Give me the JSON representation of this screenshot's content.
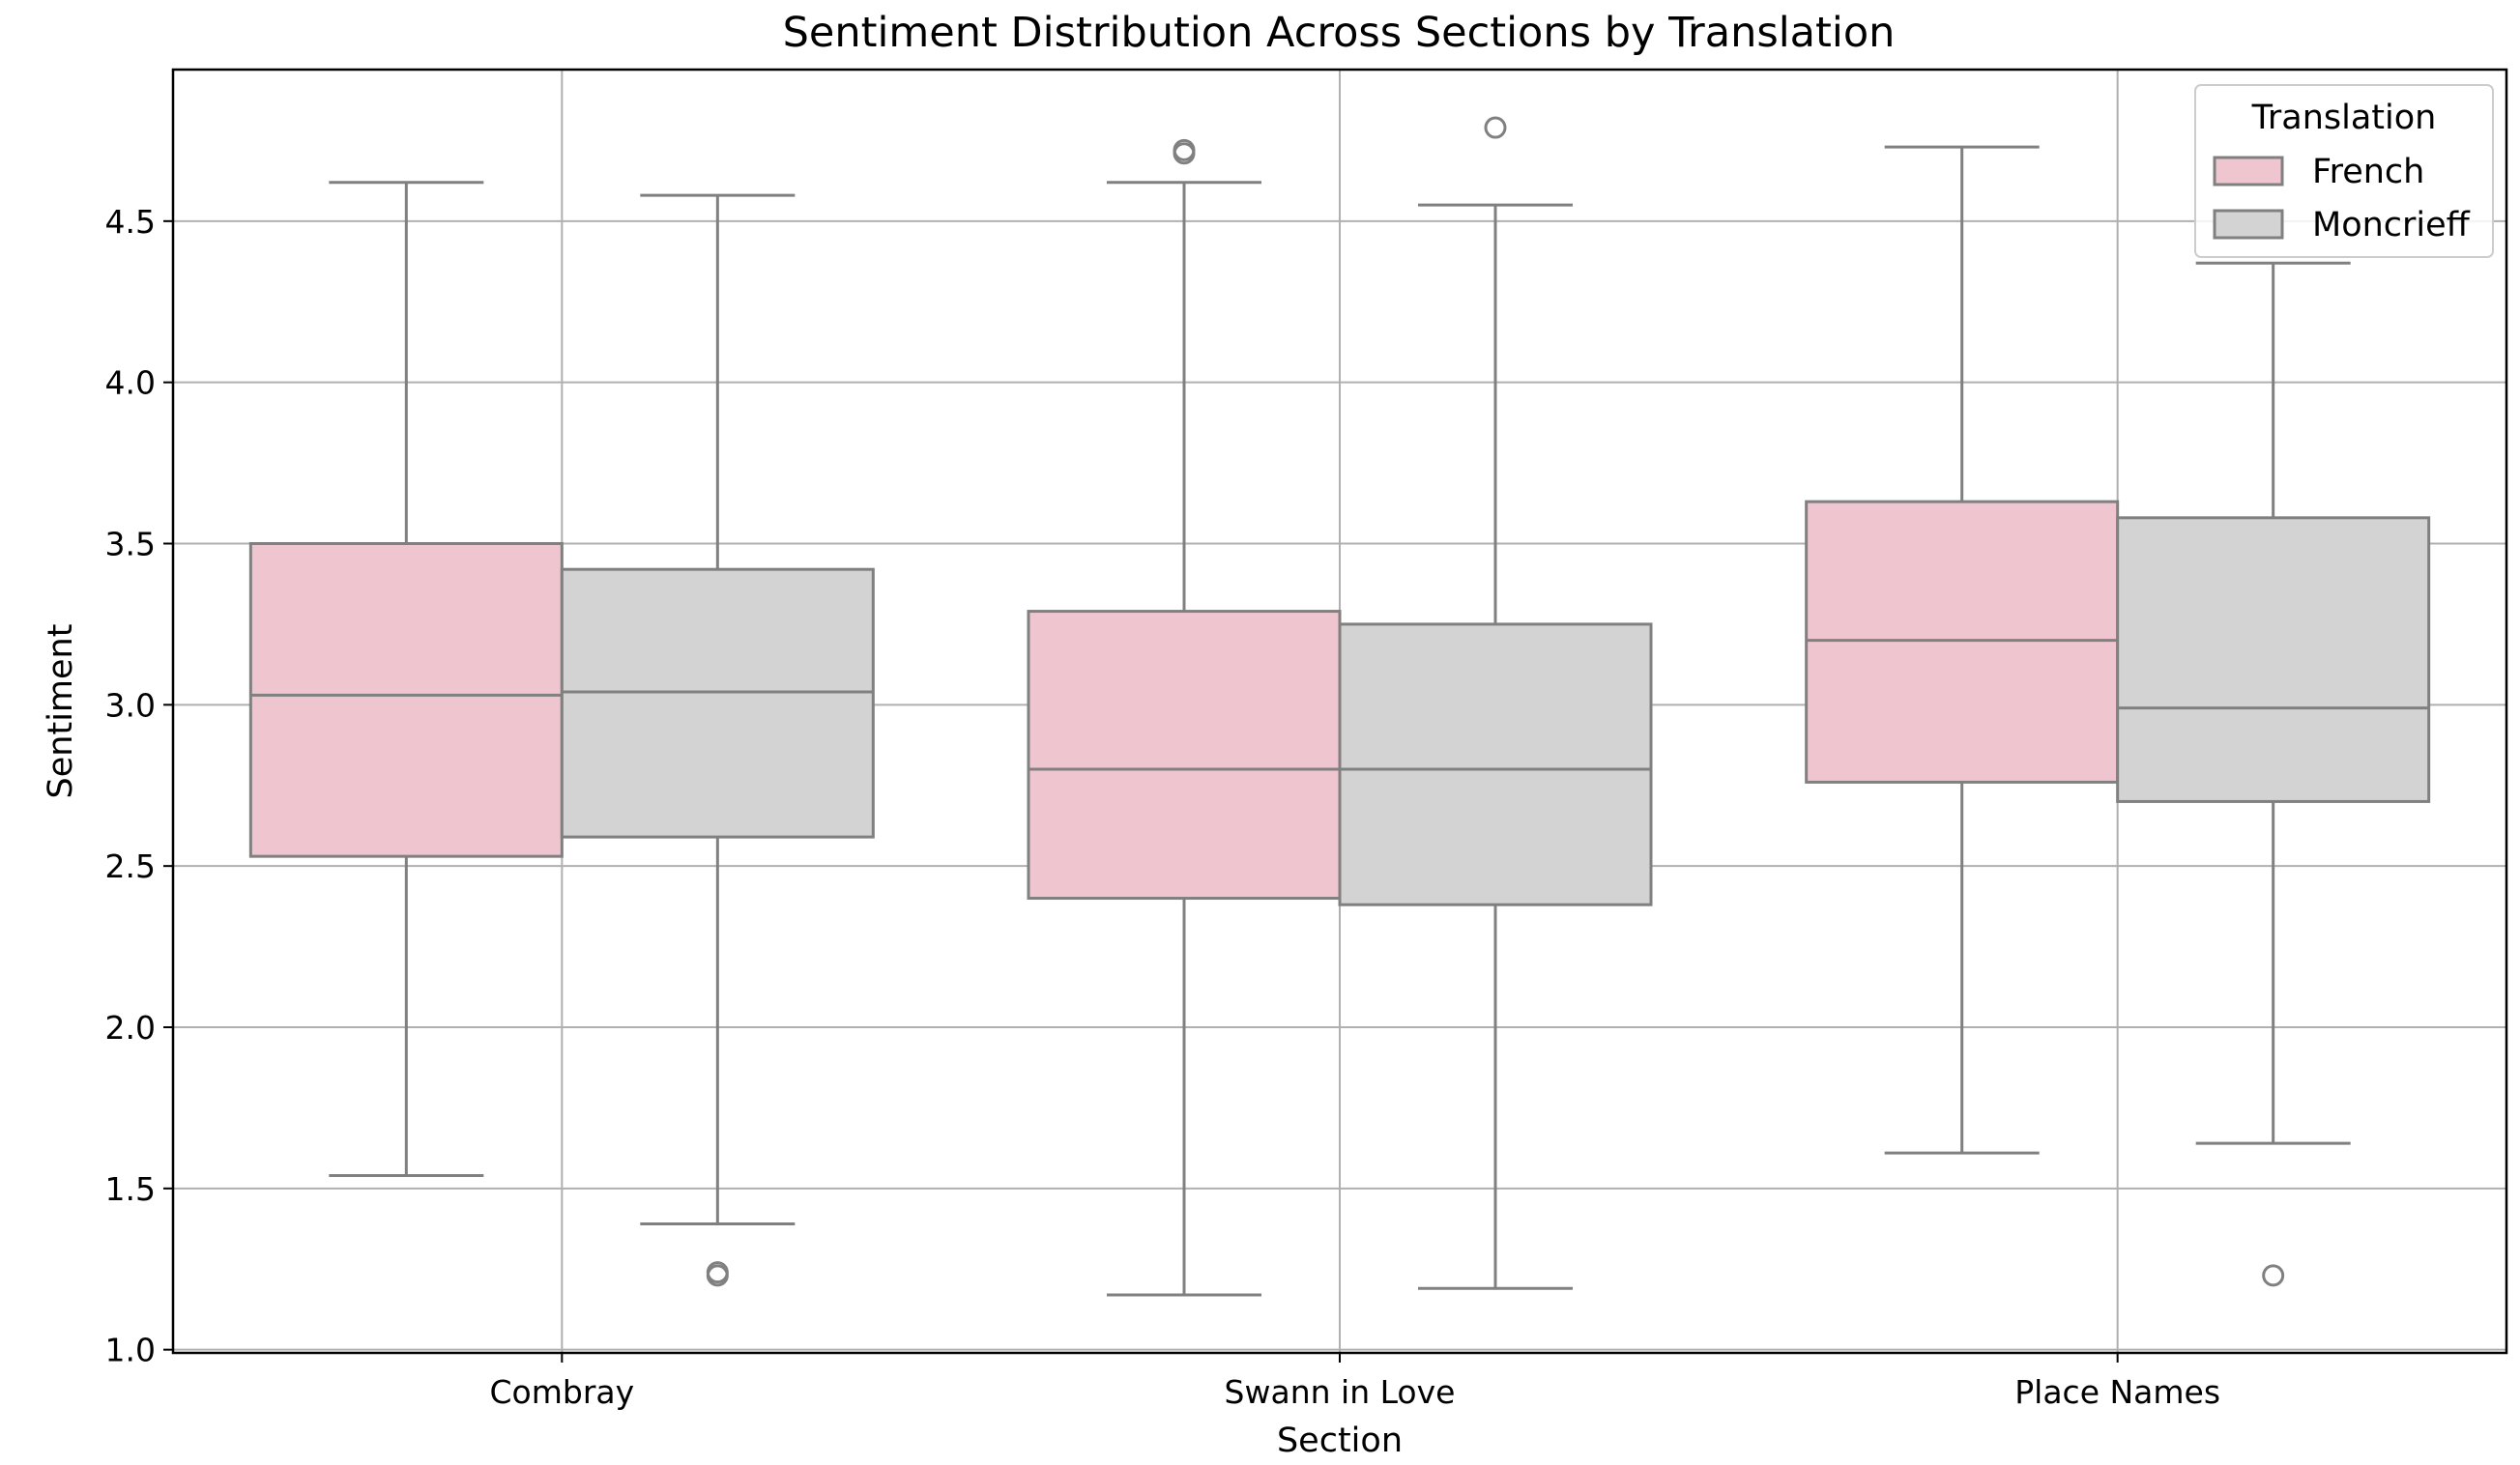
{
  "chart_data": {
    "type": "box",
    "title": "Sentiment Distribution Across Sections by Translation",
    "xlabel": "Section",
    "ylabel": "Sentiment",
    "ylim": [
      0.99,
      4.97
    ],
    "yticks": [
      "1.0",
      "1.5",
      "2.0",
      "2.5",
      "3.0",
      "3.5",
      "4.0",
      "4.5"
    ],
    "categories": [
      "Combray",
      "Swann in Love",
      "Place Names"
    ],
    "grid": true,
    "legend": {
      "title": "Translation",
      "position": "top-right"
    },
    "series": [
      {
        "name": "French",
        "color": "#efc6cf",
        "boxes": [
          {
            "whisker_low": 1.54,
            "q1": 2.53,
            "median": 3.03,
            "q3": 3.5,
            "whisker_high": 4.62,
            "outliers": []
          },
          {
            "whisker_low": 1.17,
            "q1": 2.4,
            "median": 2.8,
            "q3": 3.29,
            "whisker_high": 4.62,
            "outliers": [
              4.71,
              4.72
            ]
          },
          {
            "whisker_low": 1.61,
            "q1": 2.76,
            "median": 3.2,
            "q3": 3.63,
            "whisker_high": 4.73,
            "outliers": []
          }
        ]
      },
      {
        "name": "Moncrieff",
        "color": "#d3d3d3",
        "boxes": [
          {
            "whisker_low": 1.39,
            "q1": 2.59,
            "median": 3.04,
            "q3": 3.42,
            "whisker_high": 4.58,
            "outliers": [
              1.23,
              1.24
            ]
          },
          {
            "whisker_low": 1.19,
            "q1": 2.38,
            "median": 2.8,
            "q3": 3.25,
            "whisker_high": 4.55,
            "outliers": [
              4.79
            ]
          },
          {
            "whisker_low": 1.64,
            "q1": 2.7,
            "median": 2.99,
            "q3": 3.58,
            "whisker_high": 4.37,
            "outliers": [
              1.23
            ]
          }
        ]
      }
    ]
  }
}
